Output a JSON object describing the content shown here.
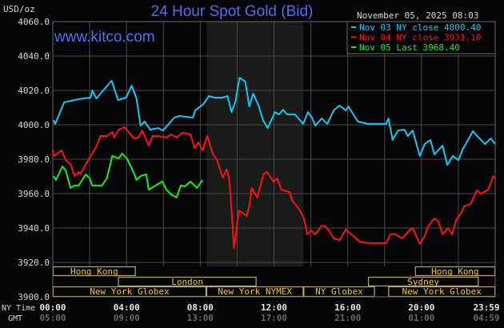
{
  "chart_data": {
    "type": "line",
    "title": "24 Hour Spot Gold (Bid)",
    "watermark": "www.kitco.com",
    "timestamp": "November 05, 2025 08:03",
    "ylabel": "USD/oz",
    "ylim": [
      3900,
      4060
    ],
    "xlim": [
      0,
      24
    ],
    "grid": true,
    "legend_position": "top-right",
    "y_ticks": [
      "4060.0",
      "4040.0",
      "4020.0",
      "4000.0",
      "3980.0",
      "3960.0",
      "3940.0",
      "3920.0",
      "3900.0"
    ],
    "x_row_labels": {
      "ny": "NY Time",
      "gmt": "GMT"
    },
    "x_ticks_ny": [
      "00:00",
      "04:00",
      "08:00",
      "12:00",
      "16:00",
      "20:00",
      "23:59"
    ],
    "x_ticks_gmt": [
      "05:00",
      "09:00",
      "13:00",
      "17:00",
      "21:00",
      "01:00",
      "04:59"
    ],
    "nymex_shading": [
      8.33,
      13.6
    ],
    "sessions": [
      {
        "name": "Hong Kong",
        "row": 0,
        "start": 0,
        "end": 4.5
      },
      {
        "name": "Hong Kong",
        "row": 0,
        "start": 19.65,
        "end": 24
      },
      {
        "name": "London",
        "row": 1,
        "start": 3.54,
        "end": 11.05
      },
      {
        "name": "Sydney",
        "row": 1,
        "start": 17.1,
        "end": 23.1
      },
      {
        "name": "New York Globex",
        "row": 2,
        "start": 0,
        "end": 8.33
      },
      {
        "name": "New York NYMEX",
        "row": 2,
        "start": 8.33,
        "end": 13.6
      },
      {
        "name": "NY Globex",
        "row": 2,
        "start": 13.6,
        "end": 17.47
      },
      {
        "name": "New York Globex",
        "row": 2,
        "start": 18.2,
        "end": 24
      }
    ],
    "series": [
      {
        "name": "Nov 03 NY close 4000.40",
        "color": "#11c8f5",
        "points": [
          [
            0.04,
            4002.8
          ],
          [
            0.13,
            4000.5
          ],
          [
            0.61,
            4013
          ],
          [
            1.18,
            4014.4
          ],
          [
            1.62,
            4015.3
          ],
          [
            2.05,
            4015.8
          ],
          [
            2.14,
            4020
          ],
          [
            2.36,
            4015.3
          ],
          [
            2.58,
            4018.1
          ],
          [
            3.19,
            4025.6
          ],
          [
            3.54,
            4014.4
          ],
          [
            3.97,
            4015.8
          ],
          [
            4.28,
            4022.8
          ],
          [
            4.54,
            4015.3
          ],
          [
            4.76,
            3999.5
          ],
          [
            4.98,
            4001.9
          ],
          [
            5.28,
            3997.2
          ],
          [
            5.72,
            3998.1
          ],
          [
            5.98,
            3996.7
          ],
          [
            6.59,
            4004.2
          ],
          [
            6.86,
            4005.1
          ],
          [
            7.6,
            4004.2
          ],
          [
            7.73,
            4008.4
          ],
          [
            8.17,
            4012.1
          ],
          [
            8.47,
            4016.7
          ],
          [
            8.78,
            4015.8
          ],
          [
            9.21,
            4015.8
          ],
          [
            9.48,
            4016.7
          ],
          [
            9.69,
            4007.4
          ],
          [
            9.91,
            4013.5
          ],
          [
            10.13,
            4027.4
          ],
          [
            10.44,
            4025.1
          ],
          [
            10.66,
            4010.7
          ],
          [
            10.87,
            4018.1
          ],
          [
            11.18,
            4010.7
          ],
          [
            11.4,
            4002.8
          ],
          [
            11.66,
            3998.1
          ],
          [
            12.05,
            4007.4
          ],
          [
            12.27,
            4006
          ],
          [
            12.49,
            4008.8
          ],
          [
            12.71,
            4006
          ],
          [
            13.14,
            4006
          ],
          [
            13.58,
            4000.5
          ],
          [
            13.84,
            4007.4
          ],
          [
            14.06,
            4004.2
          ],
          [
            14.24,
            3999.5
          ],
          [
            14.59,
            4003.7
          ],
          [
            14.89,
            4000.5
          ],
          [
            15.24,
            4008.4
          ],
          [
            15.55,
            4011.2
          ],
          [
            15.9,
            4008.4
          ],
          [
            16.03,
            4010.7
          ],
          [
            16.55,
            4001.9
          ],
          [
            16.77,
            4001.4
          ],
          [
            17.07,
            4000.5
          ],
          [
            18.08,
            4000.5
          ],
          [
            18.21,
            4003.7
          ],
          [
            18.43,
            3991.2
          ],
          [
            18.73,
            3996.7
          ],
          [
            19.08,
            3997.2
          ],
          [
            19.26,
            3993.5
          ],
          [
            19.52,
            3996.7
          ],
          [
            19.91,
            3981.9
          ],
          [
            20.17,
            3988.8
          ],
          [
            20.48,
            3991.2
          ],
          [
            20.7,
            3982.8
          ],
          [
            21.14,
            3987.9
          ],
          [
            21.4,
            3976.7
          ],
          [
            21.7,
            3981.9
          ],
          [
            22.01,
            3979.5
          ],
          [
            22.23,
            3985.6
          ],
          [
            22.79,
            3996.3
          ],
          [
            23.1,
            3992.6
          ],
          [
            23.45,
            3988.8
          ],
          [
            23.76,
            3992.1
          ],
          [
            24,
            3988.8
          ]
        ]
      },
      {
        "name": "Nov 04 NY close 3931.10",
        "color": "#ff1010",
        "points": [
          [
            0,
            3985.6
          ],
          [
            0.04,
            3981.9
          ],
          [
            0.48,
            3985.1
          ],
          [
            0.7,
            3979.5
          ],
          [
            0.96,
            3977.2
          ],
          [
            1.18,
            3970.2
          ],
          [
            1.4,
            3972.6
          ],
          [
            1.48,
            3971.2
          ],
          [
            1.92,
            3979.5
          ],
          [
            2.36,
            3987.4
          ],
          [
            2.58,
            3993.5
          ],
          [
            2.93,
            3993.5
          ],
          [
            3.23,
            3995.8
          ],
          [
            3.32,
            3992.6
          ],
          [
            3.58,
            3997.2
          ],
          [
            3.89,
            3998.6
          ],
          [
            4.41,
            3992.1
          ],
          [
            4.63,
            3992.6
          ],
          [
            4.85,
            3996.7
          ],
          [
            5.2,
            3987.9
          ],
          [
            5.41,
            3993.5
          ],
          [
            5.72,
            3993.5
          ],
          [
            6.16,
            3992.6
          ],
          [
            6.42,
            3994.4
          ],
          [
            6.72,
            3992.6
          ],
          [
            7.03,
            3995.4
          ],
          [
            7.47,
            3994.4
          ],
          [
            7.69,
            3986.5
          ],
          [
            7.9,
            3989.8
          ],
          [
            8.12,
            3985.1
          ],
          [
            8.38,
            3993.5
          ],
          [
            8.69,
            3982.8
          ],
          [
            8.91,
            3979.5
          ],
          [
            9.21,
            3969.3
          ],
          [
            9.43,
            3974
          ],
          [
            9.56,
            3968.8
          ],
          [
            9.65,
            3957.7
          ],
          [
            9.83,
            3928.4
          ],
          [
            9.91,
            3934.4
          ],
          [
            10.09,
            3950.2
          ],
          [
            10.35,
            3948.4
          ],
          [
            10.52,
            3947
          ],
          [
            10.66,
            3953
          ],
          [
            10.79,
            3963.3
          ],
          [
            11.09,
            3957.7
          ],
          [
            11.44,
            3971.6
          ],
          [
            11.62,
            3972.6
          ],
          [
            11.97,
            3967
          ],
          [
            12.18,
            3968.8
          ],
          [
            12.4,
            3962.3
          ],
          [
            12.84,
            3960.9
          ],
          [
            12.97,
            3956.3
          ],
          [
            13.41,
            3950.2
          ],
          [
            13.62,
            3945.6
          ],
          [
            13.8,
            3936.3
          ],
          [
            14.02,
            3938.6
          ],
          [
            14.24,
            3936.3
          ],
          [
            14.59,
            3941.4
          ],
          [
            14.8,
            3940.9
          ],
          [
            15.02,
            3937.7
          ],
          [
            15.24,
            3934
          ],
          [
            15.55,
            3933
          ],
          [
            15.9,
            3939.1
          ],
          [
            16.2,
            3936.3
          ],
          [
            16.64,
            3932.1
          ],
          [
            17.07,
            3931.2
          ],
          [
            18.08,
            3931.2
          ],
          [
            18.3,
            3936.3
          ],
          [
            18.52,
            3936.7
          ],
          [
            18.95,
            3934
          ],
          [
            19.39,
            3939.1
          ],
          [
            19.52,
            3940
          ],
          [
            19.91,
            3930.7
          ],
          [
            20.17,
            3935.4
          ],
          [
            20.35,
            3940.9
          ],
          [
            20.7,
            3945.6
          ],
          [
            20.92,
            3943.7
          ],
          [
            21.14,
            3936.3
          ],
          [
            21.44,
            3940
          ],
          [
            21.66,
            3936.3
          ],
          [
            21.88,
            3944.7
          ],
          [
            22.14,
            3948.4
          ],
          [
            22.31,
            3952.6
          ],
          [
            22.66,
            3954
          ],
          [
            23.01,
            3961.9
          ],
          [
            23.23,
            3960
          ],
          [
            23.62,
            3962.3
          ],
          [
            23.89,
            3970.2
          ],
          [
            24,
            3968.8
          ]
        ]
      },
      {
        "name": "Nov 05 Last 3968.40",
        "color": "#11f011",
        "points": [
          [
            0.04,
            3970.2
          ],
          [
            0.17,
            3967.9
          ],
          [
            0.52,
            3975.8
          ],
          [
            0.7,
            3973.5
          ],
          [
            0.96,
            3963.3
          ],
          [
            1.18,
            3964.7
          ],
          [
            1.4,
            3964.7
          ],
          [
            1.79,
            3971.2
          ],
          [
            2.01,
            3968.8
          ],
          [
            2.14,
            3964.7
          ],
          [
            2.45,
            3964.7
          ],
          [
            2.66,
            3964.7
          ],
          [
            2.93,
            3968.8
          ],
          [
            3.23,
            3981.9
          ],
          [
            3.58,
            3980.5
          ],
          [
            3.76,
            3983.3
          ],
          [
            4.02,
            3980.5
          ],
          [
            4.41,
            3971.6
          ],
          [
            4.54,
            3967.9
          ],
          [
            4.76,
            3970.2
          ],
          [
            5.07,
            3971.2
          ],
          [
            5.2,
            3962.3
          ],
          [
            5.5,
            3964.2
          ],
          [
            5.94,
            3967
          ],
          [
            6.16,
            3962.3
          ],
          [
            6.42,
            3959.5
          ],
          [
            6.72,
            3957.7
          ],
          [
            6.94,
            3964.7
          ],
          [
            7.16,
            3964.2
          ],
          [
            7.47,
            3967
          ],
          [
            7.82,
            3963.3
          ],
          [
            8.12,
            3967.9
          ]
        ]
      }
    ],
    "legend": [
      {
        "label": "Nov 03 NY close 4000.40",
        "color": "#11c8f5"
      },
      {
        "label": "Nov 04 NY close 3931.10",
        "color": "#ff1010"
      },
      {
        "label": "Nov 05 Last 3968.40",
        "color": "#11f011"
      }
    ],
    "colors": {
      "background": "#050507",
      "grid": "#4a4a4a",
      "nymex_shade": "#191b19",
      "session_border": "#b5a96a",
      "session_text": "#f5c518",
      "title": "#4f6ff0"
    }
  }
}
